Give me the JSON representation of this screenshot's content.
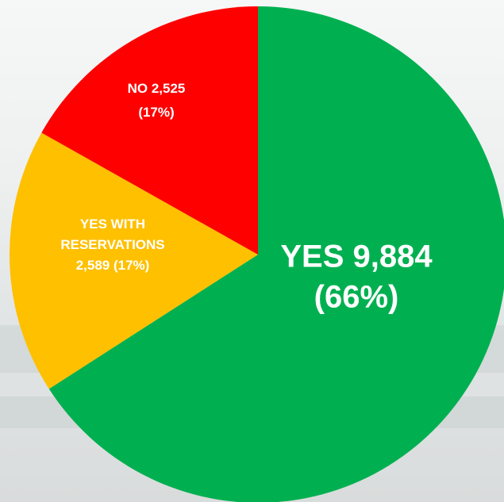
{
  "chart_data": {
    "type": "pie",
    "slices": [
      {
        "label": "YES",
        "value": 9884,
        "percent": 66,
        "color": "#00b050",
        "text_lines": [
          "YES 9,884",
          "(66%)"
        ]
      },
      {
        "label": "YES WITH RESERVATIONS",
        "value": 2589,
        "percent": 17,
        "color": "#ffc000",
        "text_lines": [
          "YES WITH",
          "RESERVATIONS",
          "2,589 (17%)"
        ]
      },
      {
        "label": "NO",
        "value": 2525,
        "percent": 17,
        "color": "#ff0000",
        "text_lines": [
          "NO 2,525",
          "(17%)"
        ]
      }
    ],
    "start_angle": "12 o'clock",
    "direction": "clockwise",
    "legend": "none"
  }
}
